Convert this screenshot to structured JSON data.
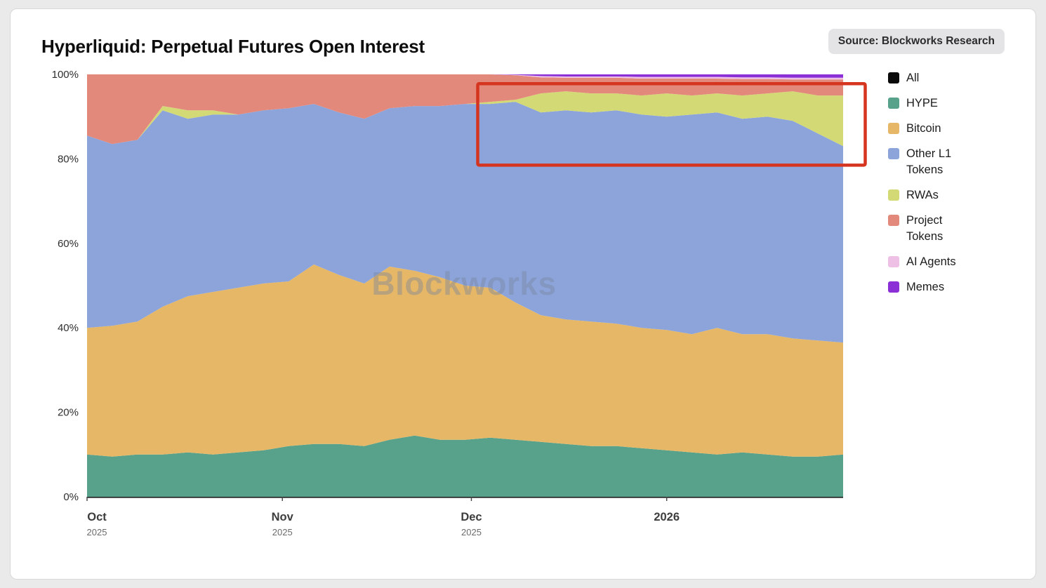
{
  "header": {
    "title": "Hyperliquid: Perpetual Futures Open Interest",
    "source_badge": "Source: Blockworks Research"
  },
  "watermark": "Blockworks",
  "legend": {
    "items": [
      {
        "label": "All",
        "color": "#0a0a0a"
      },
      {
        "label": "HYPE",
        "color": "#58a18a"
      },
      {
        "label": "Bitcoin",
        "color": "#e5b767"
      },
      {
        "label": "Other L1 Tokens",
        "color": "#8ca4da"
      },
      {
        "label": "RWAs",
        "color": "#d3da75"
      },
      {
        "label": "Project Tokens",
        "color": "#e3897c"
      },
      {
        "label": "AI Agents",
        "color": "#eec0e5"
      },
      {
        "label": "Memes",
        "color": "#8b2fd6"
      }
    ]
  },
  "chart_data": {
    "type": "area",
    "stacked": true,
    "normalized_percent": true,
    "title": "Hyperliquid: Perpetual Futures Open Interest",
    "xlabel": "",
    "ylabel": "",
    "ylim": [
      0,
      100
    ],
    "legend_position": "right",
    "grid": false,
    "yticks": [
      {
        "value": 0,
        "label": "0%"
      },
      {
        "value": 20,
        "label": "20%"
      },
      {
        "value": 40,
        "label": "40%"
      },
      {
        "value": 60,
        "label": "60%"
      },
      {
        "value": 80,
        "label": "80%"
      },
      {
        "value": 100,
        "label": "100%"
      }
    ],
    "xticks": [
      {
        "pos": 0,
        "label": "Oct",
        "sub": "2025"
      },
      {
        "pos": 31,
        "label": "Nov",
        "sub": "2025"
      },
      {
        "pos": 61,
        "label": "Dec",
        "sub": "2025"
      },
      {
        "pos": 92,
        "label": "2026",
        "sub": ""
      }
    ],
    "x_days": [
      0,
      4,
      8,
      12,
      16,
      20,
      24,
      28,
      32,
      36,
      40,
      44,
      48,
      52,
      56,
      60,
      64,
      68,
      72,
      76,
      80,
      84,
      88,
      92,
      96,
      100,
      104,
      108,
      112,
      116,
      120
    ],
    "x_dates": [
      "2025-10-01",
      "2025-10-05",
      "2025-10-09",
      "2025-10-13",
      "2025-10-17",
      "2025-10-21",
      "2025-10-25",
      "2025-10-29",
      "2025-11-02",
      "2025-11-06",
      "2025-11-10",
      "2025-11-14",
      "2025-11-18",
      "2025-11-22",
      "2025-11-26",
      "2025-11-30",
      "2025-12-04",
      "2025-12-08",
      "2025-12-12",
      "2025-12-16",
      "2025-12-20",
      "2025-12-24",
      "2025-12-28",
      "2026-01-01",
      "2026-01-05",
      "2026-01-09",
      "2026-01-13",
      "2026-01-17",
      "2026-01-21",
      "2026-01-25",
      "2026-01-29"
    ],
    "series": [
      {
        "name": "HYPE",
        "color": "#58a18a",
        "values": [
          10,
          9.5,
          10,
          10,
          10.5,
          10,
          10.5,
          11,
          12,
          12.5,
          12.5,
          12,
          13.5,
          14.5,
          13.5,
          13.5,
          14,
          13.5,
          13,
          12.5,
          12,
          12,
          11.5,
          11,
          10.5,
          10,
          10.5,
          10,
          9.5,
          9.5,
          10
        ]
      },
      {
        "name": "Bitcoin",
        "color": "#e5b767",
        "values": [
          30,
          31,
          31.5,
          35,
          37,
          38.5,
          39,
          39.5,
          39,
          42.5,
          40,
          38.5,
          41,
          39,
          38.5,
          36.5,
          35.5,
          32.5,
          30,
          29.5,
          29.5,
          29,
          28.5,
          28.5,
          28,
          30,
          28,
          28.5,
          28,
          27.5,
          26.5
        ]
      },
      {
        "name": "Other L1 Tokens",
        "color": "#8ca4da",
        "values": [
          45.5,
          43,
          43,
          46.5,
          42,
          42,
          41,
          41,
          41,
          38,
          38.5,
          39,
          37.5,
          39,
          40.5,
          43,
          43.5,
          47.5,
          48,
          49.5,
          49.5,
          50.5,
          50.5,
          50.5,
          52,
          51,
          51,
          51.5,
          51.5,
          49,
          46.5
        ]
      },
      {
        "name": "RWAs",
        "color": "#d3da75",
        "values": [
          0,
          0,
          0,
          1,
          2,
          1,
          0,
          0,
          0,
          0,
          0,
          0,
          0,
          0,
          0,
          0,
          0.5,
          0.5,
          4.5,
          4.5,
          4.5,
          4,
          4.5,
          5.5,
          4.5,
          4.5,
          5.5,
          5.5,
          7,
          9,
          12
        ]
      },
      {
        "name": "Project Tokens",
        "color": "#e3897c",
        "values": [
          14.5,
          16.5,
          15.5,
          7.5,
          8.5,
          8.5,
          9.5,
          8.5,
          8,
          7,
          9,
          10.5,
          8,
          7.5,
          7.5,
          7,
          6.5,
          5.8,
          3.8,
          3.2,
          3.7,
          3.7,
          4,
          3.5,
          4,
          3.5,
          3.9,
          3.4,
          2.8,
          3.8,
          3.8
        ]
      },
      {
        "name": "AI Agents",
        "color": "#eec0e5",
        "values": [
          0,
          0,
          0,
          0,
          0,
          0,
          0,
          0,
          0,
          0,
          0,
          0,
          0,
          0,
          0,
          0,
          0,
          0.1,
          0.3,
          0.3,
          0.3,
          0.3,
          0.4,
          0.4,
          0.4,
          0.4,
          0.4,
          0.4,
          0.4,
          0.4,
          0.4
        ]
      },
      {
        "name": "Memes",
        "color": "#8b2fd6",
        "values": [
          0,
          0,
          0,
          0,
          0,
          0,
          0,
          0,
          0,
          0,
          0,
          0,
          0,
          0,
          0,
          0,
          0,
          0.1,
          0.4,
          0.5,
          0.5,
          0.5,
          0.6,
          0.6,
          0.6,
          0.6,
          0.7,
          0.7,
          0.8,
          0.8,
          0.8
        ]
      }
    ],
    "annotation_box": {
      "x0_day": 62,
      "x1_day": 123.5,
      "y_top_pct": 97.8,
      "y_bottom_pct": 78.5,
      "color": "#d5341f"
    }
  }
}
